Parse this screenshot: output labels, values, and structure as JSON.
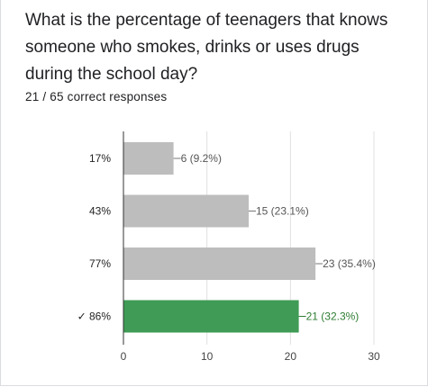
{
  "question": {
    "title": "What is the percentage of teenagers that knows someone who smokes, drinks or uses drugs during the school day?",
    "score_text": "21 / 65 correct responses"
  },
  "colors": {
    "bar": "#bdbdbd",
    "correct_bar": "#3f9b55",
    "correct_label": "#2e7d32",
    "grid": "#e0e0e0"
  },
  "chart_data": {
    "type": "bar",
    "orientation": "horizontal",
    "categories": [
      "17%",
      "43%",
      "77%",
      "86%"
    ],
    "values": [
      6,
      15,
      23,
      21
    ],
    "data_labels": [
      "6 (9.2%)",
      "15 (23.1%)",
      "23 (35.4%)",
      "21 (32.3%)"
    ],
    "correct_index": 3,
    "correct_mark": "✓",
    "xlim": [
      0,
      30
    ],
    "xticks": [
      0,
      10,
      20,
      30
    ],
    "grid": true,
    "legend": false
  }
}
